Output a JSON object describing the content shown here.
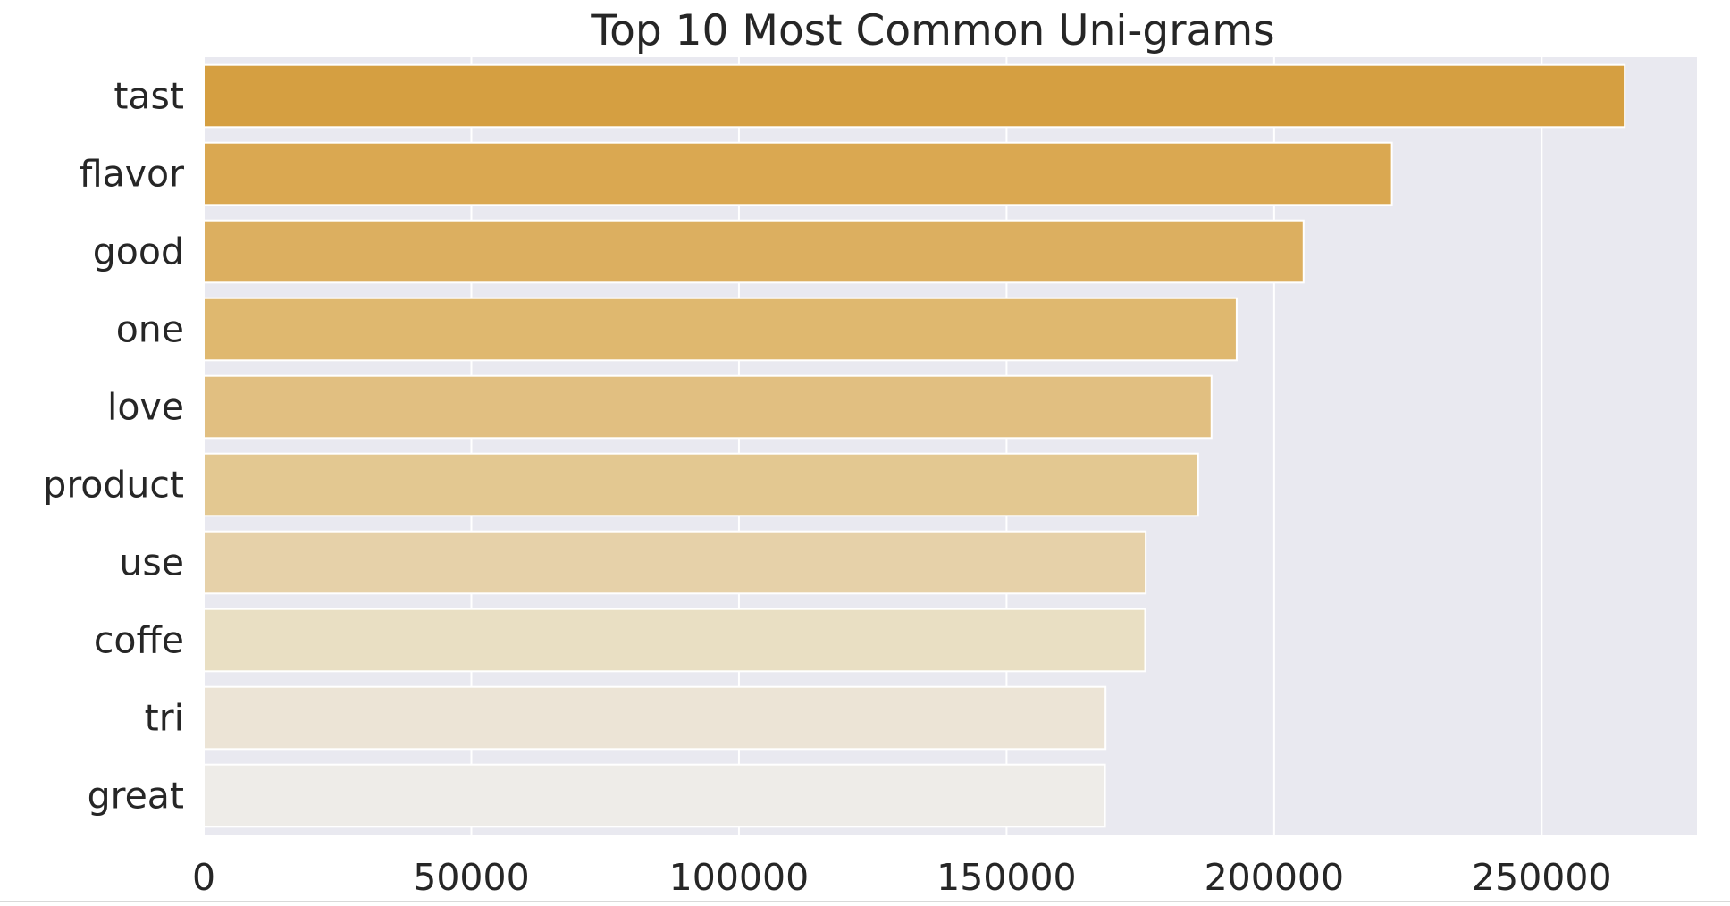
{
  "chart_data": {
    "type": "bar",
    "orientation": "horizontal",
    "title": "Top 10 Most Common Uni-grams",
    "xlabel": "",
    "ylabel": "",
    "categories": [
      "tast",
      "flavor",
      "good",
      "one",
      "love",
      "product",
      "use",
      "coffe",
      "tri",
      "great"
    ],
    "values": [
      265500,
      222000,
      205500,
      193000,
      188300,
      185800,
      176000,
      175900,
      168500,
      168400
    ],
    "colors": [
      "#d59f41",
      "#daa851",
      "#dcaf60",
      "#dfb86f",
      "#e1bf81",
      "#e3c891",
      "#e6d1a9",
      "#e9dfc3",
      "#ece4d6",
      "#eeece8"
    ],
    "xlim": [
      0,
      279000
    ],
    "xticks": [
      0,
      50000,
      100000,
      150000,
      200000,
      250000
    ],
    "xtick_labels": [
      "0",
      "50000",
      "100000",
      "150000",
      "200000",
      "250000"
    ],
    "grid": true,
    "legend": false,
    "plot_background": "#e9e9f0",
    "grid_color": "#ffffff"
  }
}
